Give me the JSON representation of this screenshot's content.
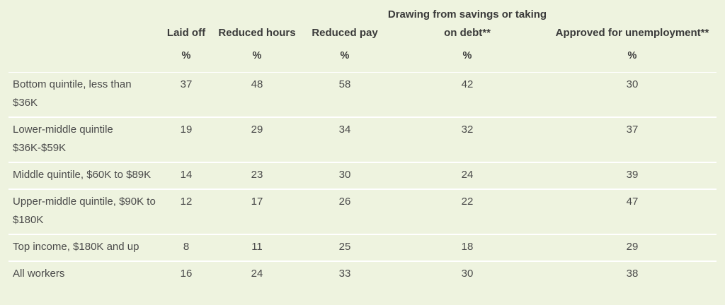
{
  "table": {
    "headers": [
      "",
      "Laid off",
      "Reduced hours",
      "Reduced pay",
      "Drawing from savings or taking on debt**",
      "Approved for unemployment**"
    ],
    "units": [
      "",
      "%",
      "%",
      "%",
      "%",
      "%"
    ],
    "rows": [
      {
        "label": "Bottom quintile, less than $36K",
        "values": [
          "37",
          "48",
          "58",
          "42",
          "30"
        ]
      },
      {
        "label": "Lower-middle quintile $36K-$59K",
        "values": [
          "19",
          "29",
          "34",
          "32",
          "37"
        ]
      },
      {
        "label": "Middle quintile, $60K to $89K",
        "values": [
          "14",
          "23",
          "30",
          "24",
          "39"
        ]
      },
      {
        "label": "Upper-middle quintile, $90K to $180K",
        "values": [
          "12",
          "17",
          "26",
          "22",
          "47"
        ]
      },
      {
        "label": "Top income, $180K and up",
        "values": [
          "8",
          "11",
          "25",
          "18",
          "29"
        ]
      },
      {
        "label": "All workers",
        "values": [
          "16",
          "24",
          "33",
          "30",
          "38"
        ]
      }
    ]
  },
  "chart_data": {
    "type": "table",
    "columns": [
      "Laid off",
      "Reduced hours",
      "Reduced pay",
      "Drawing from savings or taking on debt**",
      "Approved for unemployment**"
    ],
    "unit": "%",
    "rows": [
      {
        "name": "Bottom quintile, less than $36K",
        "values": [
          37,
          48,
          58,
          42,
          30
        ]
      },
      {
        "name": "Lower-middle quintile $36K-$59K",
        "values": [
          19,
          29,
          34,
          32,
          37
        ]
      },
      {
        "name": "Middle quintile, $60K to $89K",
        "values": [
          14,
          23,
          30,
          24,
          39
        ]
      },
      {
        "name": "Upper-middle quintile, $90K to $180K",
        "values": [
          12,
          17,
          26,
          22,
          47
        ]
      },
      {
        "name": "Top income, $180K and up",
        "values": [
          8,
          11,
          25,
          18,
          29
        ]
      },
      {
        "name": "All workers",
        "values": [
          16,
          24,
          33,
          30,
          38
        ]
      }
    ]
  },
  "colors": {
    "background": "#eef3df",
    "row_divider": "#ffffff",
    "text": "#404040"
  }
}
